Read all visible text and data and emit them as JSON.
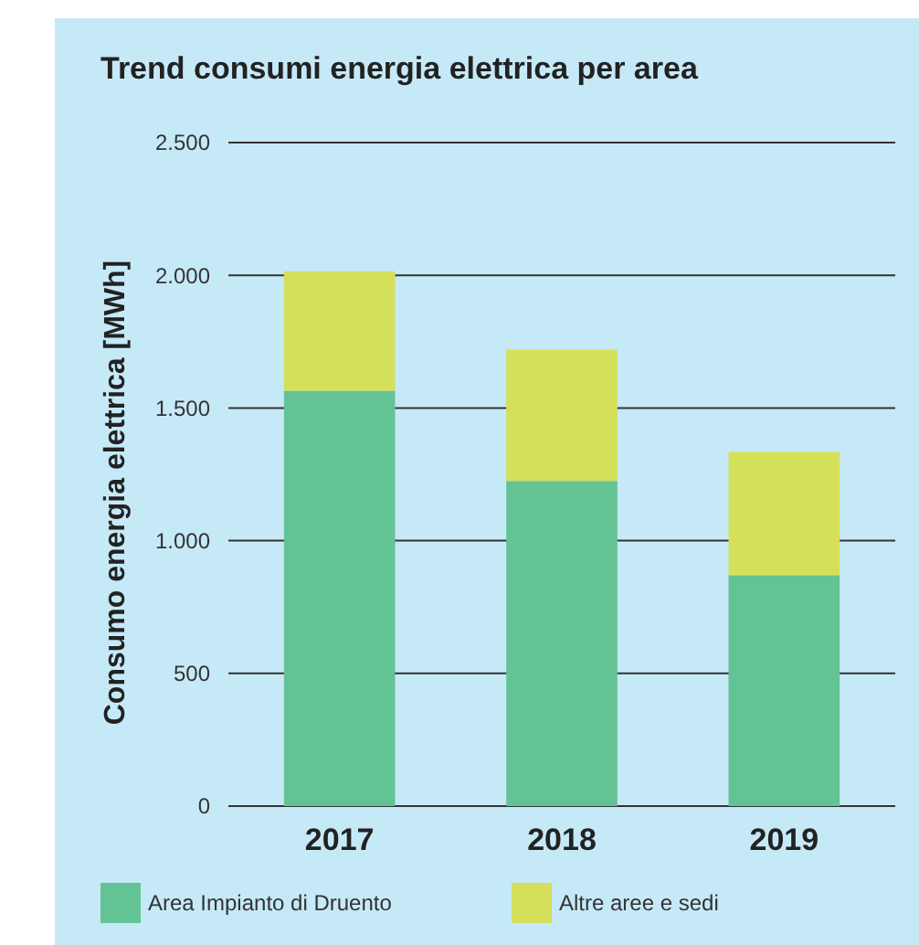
{
  "chart_data": {
    "type": "bar",
    "title": "Trend consumi energia elettrica per area",
    "ylabel": "Consumo energia elettrica [MWh]",
    "categories": [
      "2017",
      "2018",
      "2019"
    ],
    "stacked": true,
    "series": [
      {
        "name": "Area Impianto di Druento",
        "color": "#63c394",
        "values": [
          1565,
          1225,
          870
        ]
      },
      {
        "name": "Altre aree e sedi",
        "color": "#d5e05a",
        "values": [
          450,
          495,
          465
        ]
      }
    ],
    "ylim": [
      0,
      2500
    ],
    "yticks": [
      {
        "value": 0,
        "label": "0"
      },
      {
        "value": 500,
        "label": "500"
      },
      {
        "value": 1000,
        "label": "1.000"
      },
      {
        "value": 1500,
        "label": "1.500"
      },
      {
        "value": 2000,
        "label": "2.000"
      },
      {
        "value": 2500,
        "label": "2.500"
      }
    ],
    "grid": "y",
    "legend": "bottom"
  }
}
